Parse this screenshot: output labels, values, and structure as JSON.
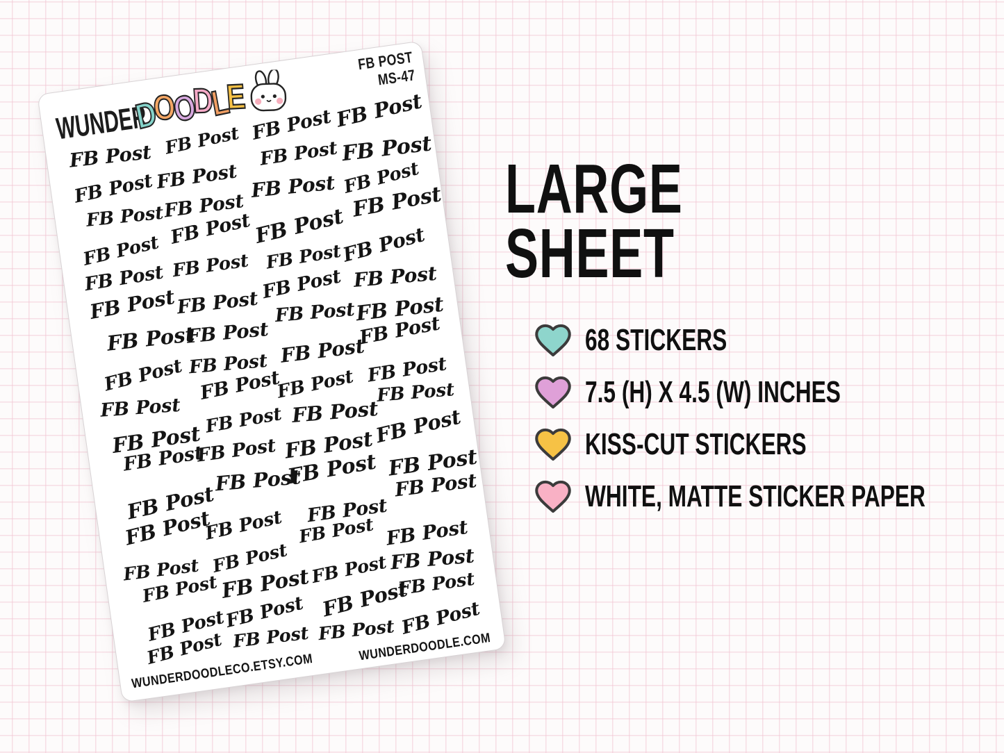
{
  "page": {
    "background": "#fdfbfb",
    "grid_line_color": "#f2c6d3"
  },
  "sheet": {
    "brand": {
      "wunder": "WUNDER",
      "doodle_letters": [
        {
          "ch": "D",
          "color": "#85d3ca"
        },
        {
          "ch": "O",
          "color": "#f5a765"
        },
        {
          "ch": "O",
          "color": "#d8a9e0"
        },
        {
          "ch": "D",
          "color": "#f5aac7"
        },
        {
          "ch": "L",
          "color": "#f09e63"
        },
        {
          "ch": "E",
          "color": "#f6c145"
        }
      ],
      "mascot": "bunny-icon",
      "bunny_cheek_color": "#f6aebc"
    },
    "corner_label": {
      "line1": "FB POST",
      "line2": "MS-47"
    },
    "sticker": {
      "label": "FB Post",
      "rows": 17,
      "cols": 4,
      "count": 68
    },
    "footer_left": "WUNDERDOODLECO.ETSY.COM",
    "footer_right": "WUNDERDOODLE.COM"
  },
  "info": {
    "title_line1": "LARGE",
    "title_line2": "SHEET",
    "heart_outline": "#3b3b3b",
    "features": [
      {
        "icon": "heart-icon",
        "color": "#8ed5cc",
        "text": "68 STICKERS"
      },
      {
        "icon": "heart-icon",
        "color": "#dfa0d8",
        "text": "7.5 (H) X 4.5 (W) INCHES"
      },
      {
        "icon": "heart-icon",
        "color": "#f6c245",
        "text": "KISS-CUT STICKERS"
      },
      {
        "icon": "heart-icon",
        "color": "#f9b1c5",
        "text": "WHITE, MATTE STICKER PAPER"
      }
    ]
  }
}
